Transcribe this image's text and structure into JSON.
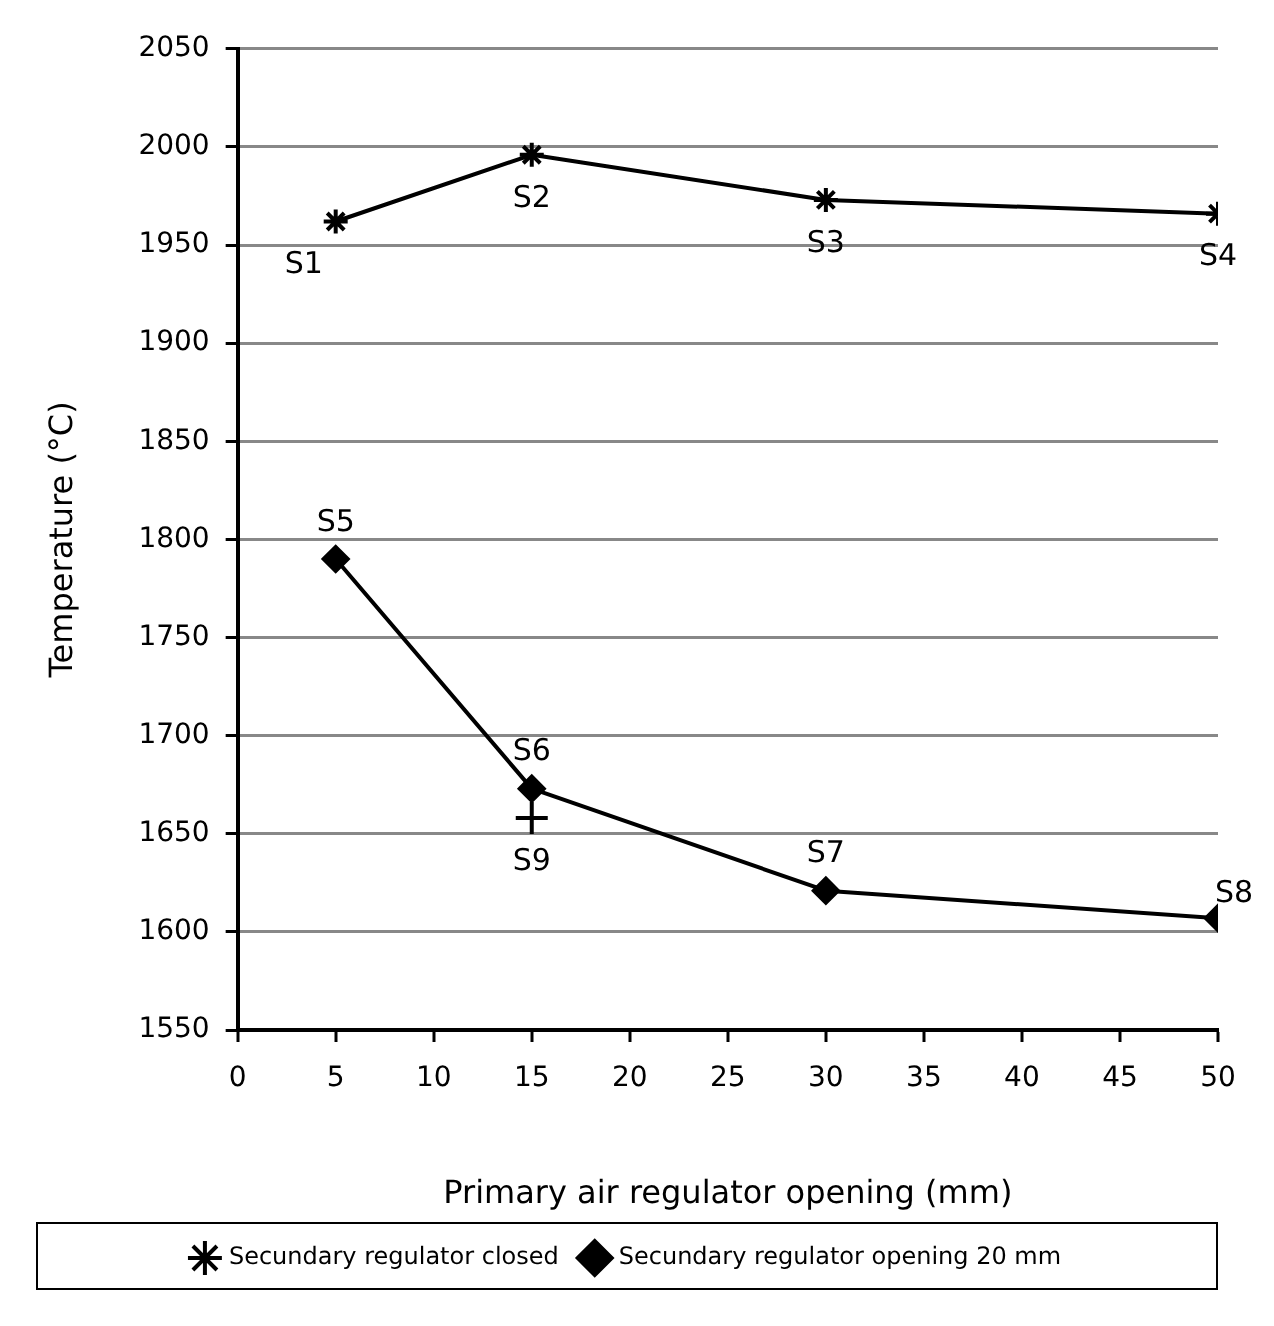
{
  "chart_data": {
    "type": "line",
    "xlabel": "Primary air regulator opening (mm)",
    "ylabel": "Temperature (°C)",
    "xlim": [
      0,
      50
    ],
    "xticks": [
      0,
      5,
      10,
      15,
      20,
      25,
      30,
      35,
      40,
      45,
      50
    ],
    "ylim": [
      1550,
      2050
    ],
    "yticks": [
      1550,
      1600,
      1650,
      1700,
      1750,
      1800,
      1850,
      1900,
      1950,
      2000,
      2050
    ],
    "grid": "y",
    "legend": "bottom",
    "series": [
      {
        "name": "Secundary regulator closed",
        "color": "#000000",
        "marker": "cross",
        "x": [
          5,
          15,
          30,
          50
        ],
        "values": [
          1962,
          1996,
          1973,
          1966
        ]
      },
      {
        "name": "Secundary regulator opening 20 mm",
        "color": "#000000",
        "marker": "diamond",
        "x": [
          5,
          15,
          30,
          50
        ],
        "values": [
          1790,
          1673,
          1621,
          1607
        ]
      },
      {
        "type": "scatter",
        "color": "#000000",
        "marker": "cross",
        "x": [
          15
        ],
        "values": [
          1658
        ]
      }
    ],
    "annotations": [
      {
        "text": "S1",
        "x": 5,
        "y": 1962
      },
      {
        "text": "S2",
        "x": 15,
        "y": 1996
      },
      {
        "text": "S3",
        "x": 30,
        "y": 1973
      },
      {
        "text": "S4",
        "x": 50,
        "y": 1966
      },
      {
        "text": "S5",
        "x": 5,
        "y": 1790
      },
      {
        "text": "S6",
        "x": 15,
        "y": 1673
      },
      {
        "text": "S7",
        "x": 30,
        "y": 1621
      },
      {
        "text": "S8",
        "x": 50,
        "y": 1607
      },
      {
        "text": "S9",
        "x": 15,
        "y": 1658
      }
    ]
  }
}
